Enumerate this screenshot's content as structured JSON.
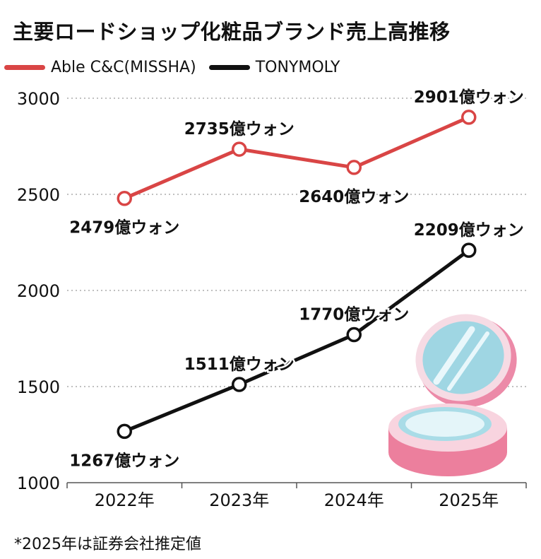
{
  "title": "主要ロードショップ化粧品ブランド売上高推移",
  "footnote": "*2025年は証券会社推定値",
  "colors": {
    "missha": "#d94545",
    "tonymoly": "#111111",
    "grid": "#9a9a9a"
  },
  "chart_data": {
    "type": "line",
    "title": "主要ロードショップ化粧品ブランド売上高推移",
    "categories": [
      "2022年",
      "2023年",
      "2024年",
      "2025年"
    ],
    "series": [
      {
        "name": "Able C&C(MISSHA)",
        "color": "#d94545",
        "values": [
          2479,
          2735,
          2640,
          2901
        ],
        "labels": [
          "2479億ウォン",
          "2735億ウォン",
          "2640億ウォン",
          "2901億ウォン"
        ]
      },
      {
        "name": "TONYMOLY",
        "color": "#111111",
        "values": [
          1267,
          1511,
          1770,
          2209
        ],
        "labels": [
          "1267億ウォン",
          "1511億ウォン",
          "1770億ウォン",
          "2209億ウォン"
        ]
      }
    ],
    "yticks": [
      "1000",
      "1500",
      "2000",
      "2500",
      "3000"
    ],
    "ylim": [
      1000,
      3000
    ],
    "xlabel": "",
    "ylabel": "",
    "grid": true,
    "legend_position": "top-left"
  }
}
